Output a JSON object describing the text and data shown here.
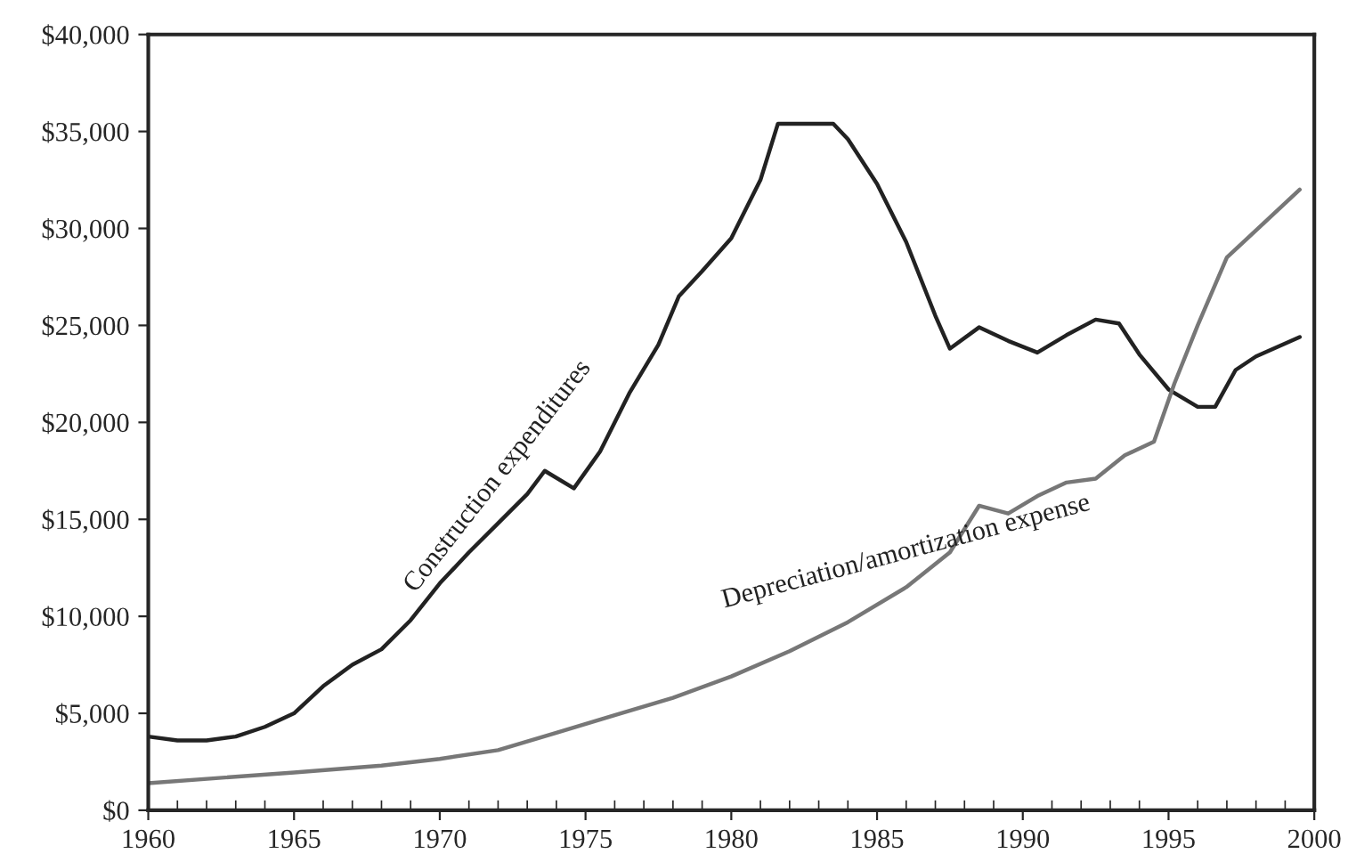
{
  "chart_data": {
    "type": "line",
    "xlim": [
      1960,
      2000
    ],
    "xticks": [
      1960,
      1965,
      1970,
      1975,
      1980,
      1985,
      1990,
      1995,
      2000
    ],
    "ylim": [
      0,
      40000
    ],
    "yticks": [
      {
        "value": 0,
        "label": "$0"
      },
      {
        "value": 5000,
        "label": "$5,000"
      },
      {
        "value": 10000,
        "label": "$10,000"
      },
      {
        "value": 15000,
        "label": "$15,000"
      },
      {
        "value": 20000,
        "label": "$20,000"
      },
      {
        "value": 25000,
        "label": "$25,000"
      },
      {
        "value": 30000,
        "label": "$30,000"
      },
      {
        "value": 35000,
        "label": "$35,000"
      },
      {
        "value": 40000,
        "label": "$40,000"
      }
    ],
    "grid": false,
    "legend": false,
    "series": [
      {
        "name": "Construction expenditures",
        "color": "#222222",
        "x": [
          1960,
          1961,
          1962,
          1963,
          1964,
          1965,
          1966,
          1967,
          1968,
          1969,
          1970,
          1971,
          1972,
          1973,
          1973.6,
          1974.6,
          1975.5,
          1976.5,
          1977.5,
          1978.2,
          1979,
          1980,
          1981,
          1981.6,
          1983.5,
          1984,
          1985,
          1986,
          1987,
          1987.5,
          1988.5,
          1989.5,
          1990.5,
          1991.5,
          1992.5,
          1993.3,
          1994,
          1995,
          1996,
          1996.6,
          1997.3,
          1998,
          1999.5
        ],
        "values": [
          3800,
          3600,
          3600,
          3800,
          4300,
          5000,
          6400,
          7500,
          8300,
          9800,
          11700,
          13300,
          14800,
          16300,
          17500,
          16600,
          18500,
          21500,
          24000,
          26500,
          27800,
          29500,
          32500,
          35400,
          35400,
          34600,
          32300,
          29300,
          25500,
          23800,
          24900,
          24200,
          23600,
          24500,
          25300,
          25100,
          23500,
          21700,
          20800,
          20800,
          22700,
          23400,
          24400
        ]
      },
      {
        "name": "Depreciation/amortization expense",
        "color": "#777777",
        "x": [
          1960,
          1965,
          1968,
          1970,
          1972,
          1974,
          1976,
          1978,
          1980,
          1982,
          1984,
          1986,
          1987.5,
          1988.5,
          1989.5,
          1990.5,
          1991.5,
          1992.5,
          1993.5,
          1994.5,
          1995.2,
          1996,
          1997,
          1999.5
        ],
        "values": [
          1400,
          1950,
          2300,
          2650,
          3100,
          4000,
          4900,
          5800,
          6900,
          8200,
          9700,
          11500,
          13300,
          15700,
          15300,
          16200,
          16900,
          17100,
          18300,
          19000,
          22000,
          25000,
          28500,
          32000
        ]
      }
    ]
  }
}
